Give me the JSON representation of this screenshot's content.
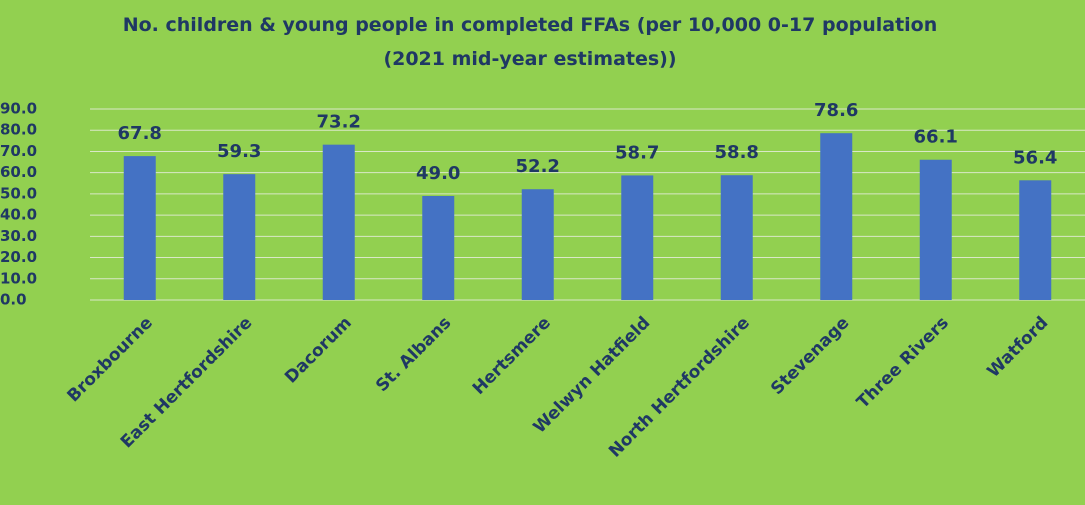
{
  "chart_data": {
    "type": "bar",
    "title": "No. children & young people in completed FFAs (per 10,000 0-17 population (2021 mid-year estimates))",
    "categories": [
      "Broxbourne",
      "East Hertfordshire",
      "Dacorum",
      "St. Albans",
      "Hertsmere",
      "Welwyn Hatfield",
      "North Hertfordshire",
      "Stevenage",
      "Three Rivers",
      "Watford"
    ],
    "values": [
      67.8,
      59.3,
      73.2,
      49.0,
      52.2,
      58.7,
      58.8,
      78.6,
      66.1,
      56.4
    ],
    "value_labels": [
      "67.8",
      "59.3",
      "73.2",
      "49.0",
      "52.2",
      "58.7",
      "58.8",
      "78.6",
      "66.1",
      "56.4"
    ],
    "color": "#4472c4",
    "ylim": [
      0,
      90
    ],
    "yticks": [
      {
        "value": 0,
        "label": "0.0"
      },
      {
        "value": 10,
        "label": "10.0"
      },
      {
        "value": 20,
        "label": "20.0"
      },
      {
        "value": 30,
        "label": "30.0"
      },
      {
        "value": 40,
        "label": "40.0"
      },
      {
        "value": 50,
        "label": "50.0"
      },
      {
        "value": 60,
        "label": "60.0"
      },
      {
        "value": 70,
        "label": "70.0"
      },
      {
        "value": 80,
        "label": "80.0"
      },
      {
        "value": 90,
        "label": "90.0"
      }
    ],
    "grid": true
  }
}
